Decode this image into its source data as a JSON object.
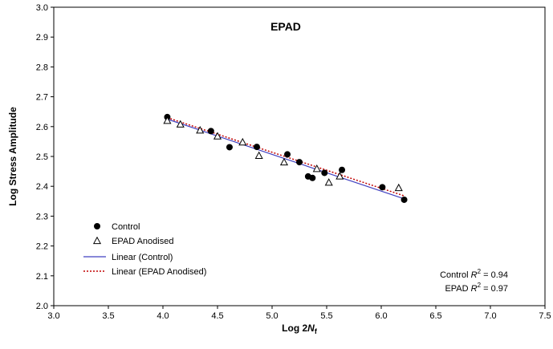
{
  "chart_data": {
    "type": "scatter",
    "title": "EPAD",
    "xlabel_main": "Log 2",
    "xlabel_italic": "N",
    "xlabel_sub": "f",
    "ylabel": "Log Stress Amplitude",
    "xlim": [
      3.0,
      7.5
    ],
    "ylim": [
      2.0,
      3.0
    ],
    "xticks": [
      "3.0",
      "3.5",
      "4.0",
      "4.5",
      "5.0",
      "5.5",
      "6.0",
      "6.5",
      "7.0",
      "7.5"
    ],
    "yticks": [
      "2.0",
      "2.1",
      "2.2",
      "2.3",
      "2.4",
      "2.5",
      "2.6",
      "2.7",
      "2.8",
      "2.9",
      "3.0"
    ],
    "grid": false,
    "legend_position": "bottom-left",
    "series": [
      {
        "name": "Control",
        "marker": "filled-circle",
        "color": "#000000",
        "points": [
          [
            4.04,
            2.632
          ],
          [
            4.44,
            2.585
          ],
          [
            4.61,
            2.531
          ],
          [
            4.86,
            2.532
          ],
          [
            5.14,
            2.507
          ],
          [
            5.25,
            2.481
          ],
          [
            5.33,
            2.433
          ],
          [
            5.37,
            2.428
          ],
          [
            5.48,
            2.445
          ],
          [
            5.64,
            2.455
          ],
          [
            6.01,
            2.397
          ],
          [
            6.21,
            2.355
          ]
        ]
      },
      {
        "name": "EPAD Anodised",
        "marker": "open-triangle",
        "color": "#000000",
        "points": [
          [
            4.04,
            2.62
          ],
          [
            4.16,
            2.608
          ],
          [
            4.34,
            2.588
          ],
          [
            4.5,
            2.568
          ],
          [
            4.73,
            2.548
          ],
          [
            4.88,
            2.503
          ],
          [
            5.11,
            2.481
          ],
          [
            5.41,
            2.459
          ],
          [
            5.52,
            2.413
          ],
          [
            5.62,
            2.434
          ],
          [
            6.16,
            2.395
          ]
        ]
      }
    ],
    "trendlines": [
      {
        "name": "Linear (Control)",
        "style": "solid",
        "color": "#4040c0",
        "from": [
          4.04,
          2.625
        ],
        "to": [
          6.21,
          2.358
        ]
      },
      {
        "name": "Linear (EPAD Anodised)",
        "style": "dotted",
        "color": "#c00000",
        "from": [
          4.04,
          2.63
        ],
        "to": [
          6.21,
          2.368
        ]
      }
    ],
    "annotations": {
      "control_r2": {
        "prefix": "Control ",
        "r": "R",
        "sup": "2",
        "value": " = 0.94"
      },
      "epad_r2": {
        "prefix": "EPAD ",
        "r": "R",
        "sup": "2",
        "value": " = 0.97"
      }
    }
  }
}
